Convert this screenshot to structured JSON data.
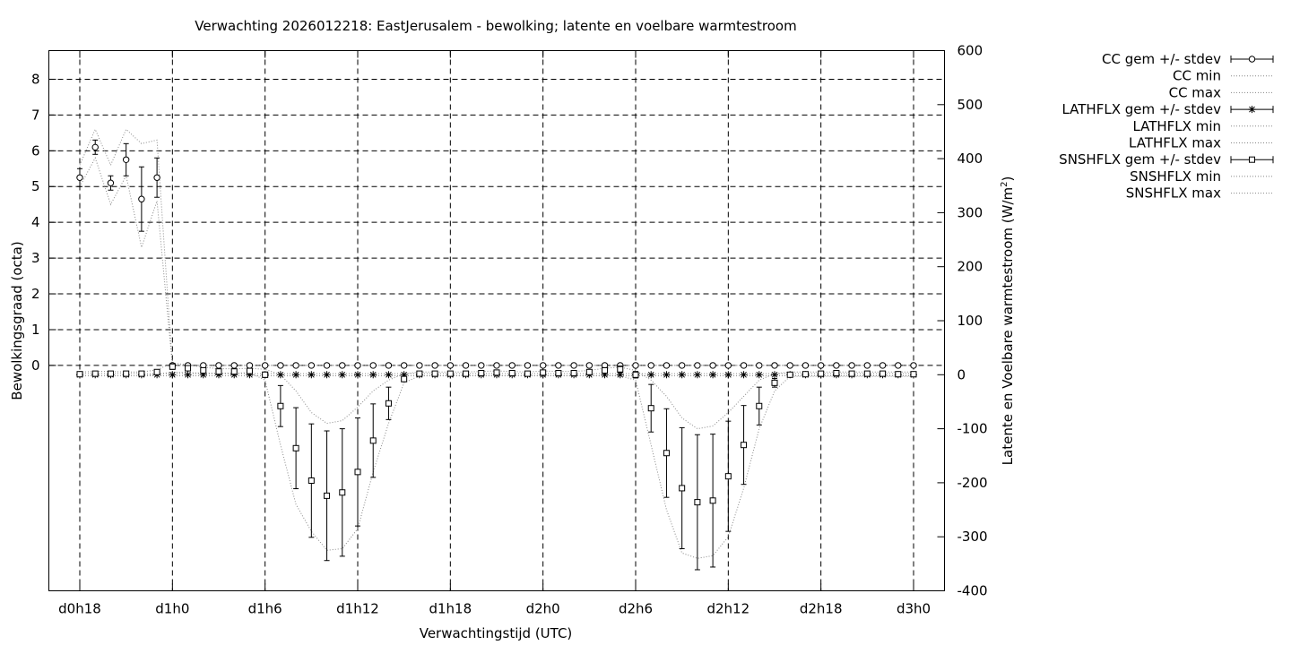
{
  "chart_data": {
    "type": "line",
    "title": "Verwachting 2026012218: EastJerusalem - bewolking; latente en voelbare warmtestroom",
    "xlabel": "Verwachtingstijd (UTC)",
    "ylabel": "Bewolkingsgraad (octa)",
    "y2label": "Latente en Voelbare warmtestroom (W/m",
    "y2label_sup": "2",
    "y2label_tail": ")",
    "xlim": [
      18,
      72
    ],
    "ylim": [
      -6.3,
      8.8
    ],
    "y2lim": [
      -400,
      600
    ],
    "grid": true,
    "legend_position": "outside-right",
    "x_ticks": [
      {
        "value": 18,
        "label": "d0h18"
      },
      {
        "value": 24,
        "label": "d1h0"
      },
      {
        "value": 30,
        "label": "d1h6"
      },
      {
        "value": 36,
        "label": "d1h12"
      },
      {
        "value": 42,
        "label": "d1h18"
      },
      {
        "value": 48,
        "label": "d2h0"
      },
      {
        "value": 54,
        "label": "d2h6"
      },
      {
        "value": 60,
        "label": "d2h12"
      },
      {
        "value": 66,
        "label": "d2h18"
      },
      {
        "value": 72,
        "label": "d3h0"
      }
    ],
    "y_ticks": [
      {
        "value": 0,
        "label": "0"
      },
      {
        "value": 1,
        "label": "1"
      },
      {
        "value": 2,
        "label": "2"
      },
      {
        "value": 3,
        "label": "3"
      },
      {
        "value": 4,
        "label": "4"
      },
      {
        "value": 5,
        "label": "5"
      },
      {
        "value": 6,
        "label": "6"
      },
      {
        "value": 7,
        "label": "7"
      },
      {
        "value": 8,
        "label": "8"
      }
    ],
    "y2_ticks": [
      {
        "value": 600,
        "label": "600"
      },
      {
        "value": 500,
        "label": "500"
      },
      {
        "value": 400,
        "label": "400"
      },
      {
        "value": 300,
        "label": "300"
      },
      {
        "value": 200,
        "label": "200"
      },
      {
        "value": 100,
        "label": "100"
      },
      {
        "value": 0,
        "label": "0"
      },
      {
        "value": -100,
        "label": "-100"
      },
      {
        "value": -200,
        "label": "-200"
      },
      {
        "value": -300,
        "label": "-300"
      },
      {
        "value": -400,
        "label": "-400"
      }
    ],
    "x": [
      18,
      19,
      20,
      21,
      22,
      23,
      24,
      25,
      26,
      27,
      28,
      29,
      30,
      31,
      32,
      33,
      34,
      35,
      36,
      37,
      38,
      39,
      40,
      41,
      42,
      43,
      44,
      45,
      46,
      47,
      48,
      49,
      50,
      51,
      52,
      53,
      54,
      55,
      56,
      57,
      58,
      59,
      60,
      61,
      62,
      63,
      64,
      65,
      66,
      67,
      68,
      69,
      70,
      71,
      72
    ],
    "series": [
      {
        "name": "CC gem +/- stdev",
        "axis": "y1",
        "marker": "circle",
        "mean": [
          5.25,
          6.1,
          5.1,
          5.75,
          4.65,
          5.25,
          0,
          0,
          0,
          0,
          0,
          0,
          0,
          0,
          0,
          0,
          0,
          0,
          0,
          0,
          0,
          0,
          0,
          0,
          0,
          0,
          0,
          0,
          0,
          0,
          0,
          0,
          0,
          0,
          0,
          0,
          0,
          0,
          0,
          0,
          0,
          0,
          0,
          0,
          0,
          0,
          0,
          0,
          0,
          0,
          0,
          0,
          0,
          0,
          0
        ],
        "stdev": [
          0.25,
          0.2,
          0.2,
          0.45,
          0.9,
          0.55,
          0,
          0,
          0,
          0,
          0,
          0,
          0,
          0,
          0,
          0,
          0,
          0,
          0,
          0,
          0,
          0,
          0,
          0,
          0,
          0,
          0,
          0,
          0,
          0,
          0,
          0,
          0,
          0,
          0,
          0,
          0,
          0,
          0,
          0,
          0,
          0,
          0,
          0,
          0,
          0,
          0,
          0,
          0,
          0,
          0,
          0,
          0,
          0,
          0
        ]
      },
      {
        "name": "CC min",
        "axis": "y1",
        "style": "dotted",
        "values": [
          5.0,
          5.8,
          4.5,
          5.3,
          3.3,
          4.6,
          0,
          0,
          0,
          0,
          0,
          0,
          0,
          0,
          0,
          0,
          0,
          0,
          0,
          0,
          0,
          0,
          0,
          0,
          0,
          0,
          0,
          0,
          0,
          0,
          0,
          0,
          0,
          0,
          0,
          0,
          0,
          0,
          0,
          0,
          0,
          0,
          0,
          0,
          0,
          0,
          0,
          0,
          0,
          0,
          0,
          0,
          0,
          0,
          0
        ]
      },
      {
        "name": "CC max",
        "axis": "y1",
        "style": "dotted",
        "values": [
          5.6,
          6.6,
          5.6,
          6.6,
          6.2,
          6.3,
          0,
          0,
          0,
          0,
          0,
          0,
          0,
          0,
          0,
          0,
          0,
          0,
          0,
          0,
          0,
          0,
          0,
          0,
          0,
          0,
          0,
          0,
          0,
          0,
          0,
          0,
          0,
          0,
          0,
          0,
          0,
          0,
          0,
          0,
          0,
          0,
          0,
          0,
          0,
          0,
          0,
          0,
          0,
          0,
          0,
          0,
          0,
          0,
          0
        ]
      },
      {
        "name": "LATHFLX gem +/- stdev",
        "axis": "y2",
        "marker": "star",
        "mean": [
          0,
          0,
          0,
          0,
          0,
          0,
          0,
          0,
          0,
          0,
          0,
          0,
          0,
          0,
          0,
          0,
          0,
          0,
          0,
          0,
          0,
          0,
          0,
          0,
          0,
          0,
          0,
          0,
          0,
          0,
          0,
          0,
          0,
          0,
          0,
          0,
          0,
          0,
          0,
          0,
          0,
          0,
          0,
          0,
          0,
          0,
          0,
          0,
          0,
          0,
          0,
          0,
          0,
          0,
          0
        ],
        "stdev": [
          0,
          0,
          0,
          0,
          0,
          0,
          0,
          0,
          0,
          0,
          0,
          0,
          0,
          0,
          0,
          0,
          0,
          0,
          0,
          0,
          0,
          0,
          0,
          0,
          0,
          0,
          0,
          0,
          0,
          0,
          0,
          0,
          0,
          0,
          0,
          0,
          0,
          0,
          0,
          0,
          0,
          0,
          0,
          0,
          0,
          0,
          0,
          0,
          0,
          0,
          0,
          0,
          0,
          0,
          0
        ]
      },
      {
        "name": "LATHFLX min",
        "axis": "y2",
        "style": "dotted",
        "values": [
          -2,
          -2,
          -2,
          -2,
          -2,
          -2,
          -2,
          -2,
          -2,
          -2,
          -2,
          -2,
          -2,
          -2,
          -2,
          -2,
          -2,
          -2,
          -2,
          -2,
          -2,
          -2,
          -2,
          -2,
          -2,
          -2,
          -2,
          -2,
          -2,
          -2,
          -2,
          -2,
          -2,
          -2,
          -2,
          -2,
          -2,
          -2,
          -2,
          -2,
          -2,
          -2,
          -2,
          -2,
          -2,
          -2,
          -2,
          -2,
          -2,
          -2,
          -2,
          -2,
          -2,
          -2,
          -2
        ]
      },
      {
        "name": "LATHFLX max",
        "axis": "y2",
        "style": "dotted",
        "values": [
          2,
          2,
          2,
          2,
          2,
          2,
          2,
          2,
          2,
          2,
          2,
          2,
          2,
          2,
          2,
          2,
          2,
          2,
          2,
          2,
          2,
          2,
          2,
          2,
          2,
          2,
          2,
          2,
          2,
          2,
          2,
          2,
          2,
          2,
          2,
          2,
          2,
          2,
          2,
          2,
          2,
          2,
          2,
          2,
          2,
          2,
          2,
          2,
          2,
          2,
          2,
          2,
          2,
          2,
          2
        ]
      },
      {
        "name": "SNSHFLX gem +/- stdev",
        "axis": "y2",
        "marker": "square",
        "mean": [
          1,
          2,
          2,
          2,
          2,
          5,
          15,
          12,
          8,
          6,
          6,
          7,
          0,
          -58,
          -136,
          -196,
          -224,
          -218,
          -180,
          -122,
          -53,
          -8,
          2,
          2,
          2,
          2,
          3,
          4,
          3,
          2,
          4,
          3,
          3,
          5,
          8,
          10,
          0,
          -62,
          -145,
          -210,
          -236,
          -233,
          -188,
          -130,
          -58,
          -15,
          0,
          1,
          2,
          3,
          2,
          2,
          2,
          1,
          1
        ],
        "stdev": [
          3,
          4,
          4,
          2,
          2,
          3,
          5,
          4,
          3,
          2,
          2,
          3,
          5,
          38,
          75,
          105,
          120,
          118,
          100,
          68,
          30,
          5,
          2,
          2,
          2,
          2,
          2,
          2,
          2,
          2,
          2,
          2,
          2,
          3,
          5,
          6,
          6,
          44,
          82,
          112,
          125,
          123,
          102,
          73,
          35,
          8,
          3,
          2,
          2,
          2,
          2,
          2,
          2,
          2,
          2
        ]
      },
      {
        "name": "SNSHFLX min",
        "axis": "y2",
        "style": "dotted",
        "values": [
          -2,
          -2,
          -2,
          -2,
          -2,
          1,
          5,
          4,
          3,
          3,
          3,
          4,
          -10,
          -130,
          -240,
          -290,
          -325,
          -322,
          -285,
          -180,
          -90,
          -15,
          -2,
          -2,
          -2,
          -2,
          -2,
          -2,
          -2,
          -2,
          -2,
          -2,
          -2,
          -2,
          -2,
          -2,
          -10,
          -130,
          -250,
          -330,
          -340,
          -335,
          -300,
          -210,
          -100,
          -30,
          -3,
          -3,
          -3,
          -3,
          -3,
          -3,
          -3,
          -3,
          -3
        ]
      },
      {
        "name": "SNSHFLX max",
        "axis": "y2",
        "style": "dotted",
        "values": [
          5,
          6,
          6,
          5,
          5,
          9,
          22,
          18,
          14,
          11,
          11,
          12,
          10,
          0,
          -30,
          -70,
          -90,
          -85,
          -60,
          -30,
          -10,
          2,
          5,
          5,
          5,
          5,
          6,
          7,
          6,
          5,
          7,
          6,
          6,
          8,
          12,
          14,
          8,
          -10,
          -40,
          -80,
          -100,
          -95,
          -70,
          -40,
          -10,
          2,
          5,
          5,
          5,
          5,
          5,
          5,
          5,
          5,
          5
        ]
      }
    ]
  }
}
